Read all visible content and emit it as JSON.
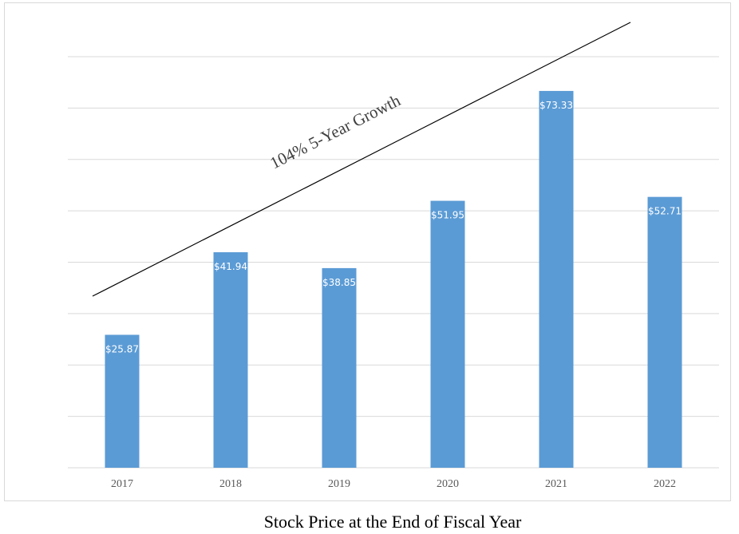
{
  "chart_data": {
    "type": "bar",
    "title": "",
    "caption": "Stock Price at the End of Fiscal Year",
    "xlabel": "",
    "ylabel": "",
    "categories": [
      "2017",
      "2018",
      "2019",
      "2020",
      "2021",
      "2022"
    ],
    "values": [
      25.87,
      41.94,
      38.85,
      51.95,
      73.33,
      52.71
    ],
    "data_labels": [
      "$25.87",
      "$41.94",
      "$38.85",
      "$51.95",
      "$73.33",
      "$52.71"
    ],
    "ylim": [
      0,
      80
    ],
    "y_gridline_step": 10,
    "grid": true,
    "legend": null,
    "bar_color": "#5b9bd5",
    "annotations": [
      {
        "type": "trend-line",
        "text": "104% 5-Year Growth",
        "color": "#000000"
      }
    ]
  },
  "caption": "Stock Price at the End of Fiscal Year",
  "annotation_text": "104% 5-Year Growth"
}
